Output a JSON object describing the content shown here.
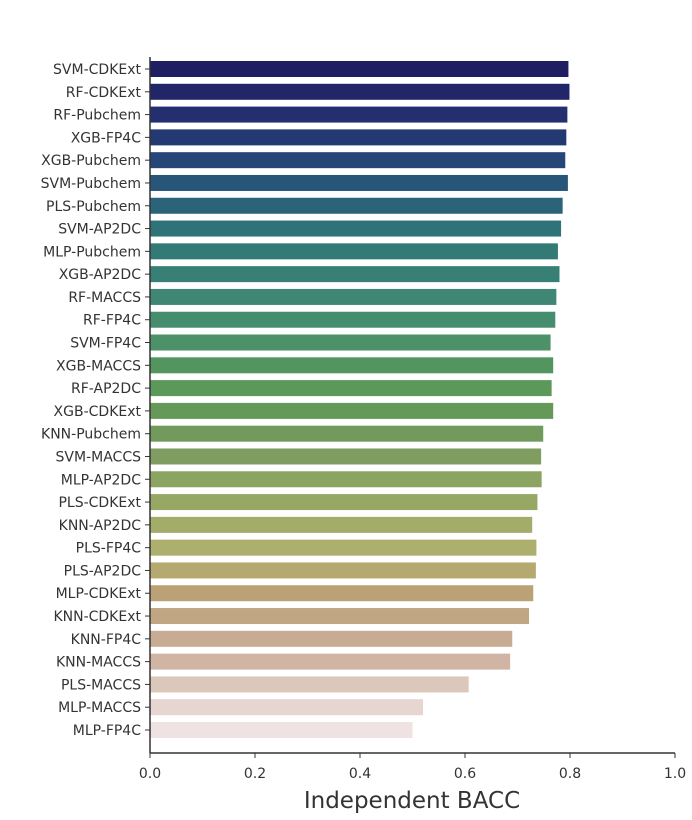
{
  "chart_data": {
    "type": "bar",
    "orientation": "horizontal",
    "title": "",
    "xlabel": "Independent BACC",
    "ylabel": "",
    "xlim": [
      0.0,
      1.0
    ],
    "xticks": [
      "0.0",
      "0.2",
      "0.4",
      "0.6",
      "0.8",
      "1.0"
    ],
    "grid": false,
    "categories": [
      "SVM-CDKExt",
      "RF-CDKExt",
      "RF-Pubchem",
      "XGB-FP4C",
      "XGB-Pubchem",
      "SVM-Pubchem",
      "PLS-Pubchem",
      "SVM-AP2DC",
      "MLP-Pubchem",
      "XGB-AP2DC",
      "RF-MACCS",
      "RF-FP4C",
      "SVM-FP4C",
      "XGB-MACCS",
      "RF-AP2DC",
      "XGB-CDKExt",
      "KNN-Pubchem",
      "SVM-MACCS",
      "MLP-AP2DC",
      "PLS-CDKExt",
      "KNN-AP2DC",
      "PLS-FP4C",
      "PLS-AP2DC",
      "MLP-CDKExt",
      "KNN-CDKExt",
      "KNN-FP4C",
      "KNN-MACCS",
      "PLS-MACCS",
      "MLP-MACCS",
      "MLP-FP4C"
    ],
    "values": [
      0.797,
      0.799,
      0.795,
      0.793,
      0.791,
      0.796,
      0.786,
      0.783,
      0.777,
      0.78,
      0.774,
      0.772,
      0.763,
      0.768,
      0.765,
      0.768,
      0.749,
      0.745,
      0.746,
      0.738,
      0.728,
      0.736,
      0.735,
      0.73,
      0.722,
      0.69,
      0.686,
      0.607,
      0.52,
      0.5
    ],
    "colors": [
      "#1f1e63",
      "#212669",
      "#232f6e",
      "#243872",
      "#264677",
      "#285678",
      "#2b6479",
      "#2f7278",
      "#337a77",
      "#387f76",
      "#3f8774",
      "#468d6f",
      "#4c9167",
      "#53955f",
      "#5b985a",
      "#649957",
      "#739a5d",
      "#7f9d60",
      "#8ba462",
      "#97a865",
      "#a3ac69",
      "#adaf6d",
      "#b4aa6f",
      "#bba276",
      "#c0a682",
      "#c8ab93",
      "#d0b5a4",
      "#dcc7bb",
      "#e6d5d0",
      "#eee3e2"
    ]
  }
}
